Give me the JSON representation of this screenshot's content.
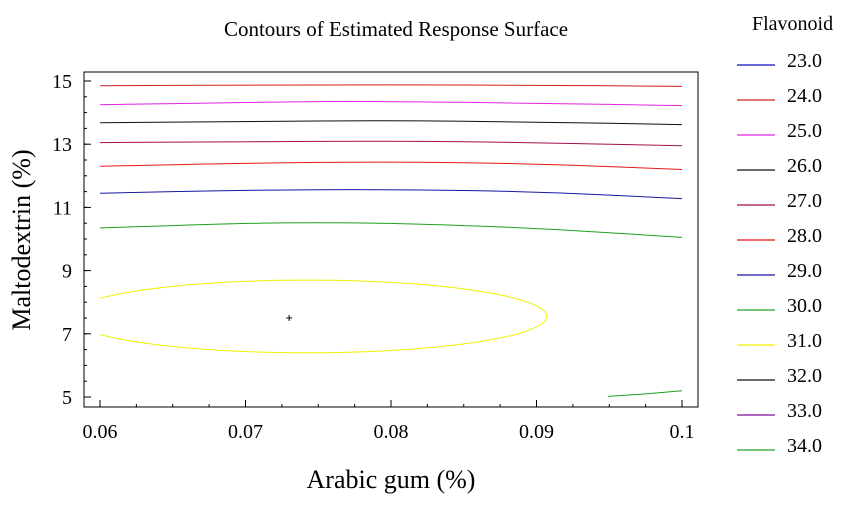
{
  "chart_data": {
    "type": "contour",
    "title": "Contours of Estimated Response Surface",
    "xlabel": "Arabic gum (%)",
    "ylabel": "Maltodextrin (%)",
    "xlim": [
      0.06,
      0.1
    ],
    "ylim": [
      5,
      15
    ],
    "xticks": [
      "0.06",
      "0.07",
      "0.08",
      "0.09",
      "0.1"
    ],
    "yticks": [
      "5",
      "7",
      "9",
      "11",
      "13",
      "15"
    ],
    "grid": false,
    "legend": {
      "title": "Flavonoid",
      "placement": "right",
      "entries": [
        {
          "label": "23.0",
          "color": "#1010c0"
        },
        {
          "label": "24.0",
          "color": "#d02020"
        },
        {
          "label": "25.0",
          "color": "#e020e0"
        },
        {
          "label": "26.0",
          "color": "#101010"
        },
        {
          "label": "27.0",
          "color": "#a01050"
        },
        {
          "label": "28.0",
          "color": "#e81818"
        },
        {
          "label": "29.0",
          "color": "#1818a0"
        },
        {
          "label": "30.0",
          "color": "#20a020"
        },
        {
          "label": "31.0",
          "color": "#f0f000"
        },
        {
          "label": "32.0",
          "color": "#101010"
        },
        {
          "label": "33.0",
          "color": "#8010a0"
        },
        {
          "label": "34.0",
          "color": "#20a020"
        }
      ]
    },
    "contours": [
      {
        "level": "24.0",
        "color": "#d02020",
        "points": [
          [
            0.06,
            14.85
          ],
          [
            0.07,
            14.87
          ],
          [
            0.08,
            14.88
          ],
          [
            0.09,
            14.87
          ],
          [
            0.1,
            14.83
          ]
        ]
      },
      {
        "level": "25.0",
        "color": "#e020e0",
        "points": [
          [
            0.06,
            14.25
          ],
          [
            0.07,
            14.32
          ],
          [
            0.075,
            14.35
          ],
          [
            0.08,
            14.35
          ],
          [
            0.09,
            14.3
          ],
          [
            0.1,
            14.22
          ]
        ]
      },
      {
        "level": "26.0",
        "color": "#101010",
        "points": [
          [
            0.06,
            13.68
          ],
          [
            0.07,
            13.72
          ],
          [
            0.08,
            13.75
          ],
          [
            0.09,
            13.7
          ],
          [
            0.1,
            13.62
          ]
        ]
      },
      {
        "level": "27.0",
        "color": "#a01050",
        "points": [
          [
            0.06,
            13.05
          ],
          [
            0.07,
            13.08
          ],
          [
            0.08,
            13.1
          ],
          [
            0.09,
            13.05
          ],
          [
            0.1,
            12.95
          ]
        ]
      },
      {
        "level": "28.0",
        "color": "#e81818",
        "points": [
          [
            0.06,
            12.3
          ],
          [
            0.07,
            12.4
          ],
          [
            0.08,
            12.45
          ],
          [
            0.09,
            12.38
          ],
          [
            0.1,
            12.2
          ]
        ]
      },
      {
        "level": "29.0",
        "color": "#1818a0",
        "points": [
          [
            0.06,
            11.45
          ],
          [
            0.07,
            11.55
          ],
          [
            0.08,
            11.57
          ],
          [
            0.09,
            11.5
          ],
          [
            0.1,
            11.28
          ]
        ]
      },
      {
        "level": "30.0",
        "color": "#20a020",
        "points": [
          [
            0.06,
            10.35
          ],
          [
            0.07,
            10.5
          ],
          [
            0.075,
            10.52
          ],
          [
            0.08,
            10.5
          ],
          [
            0.09,
            10.35
          ],
          [
            0.1,
            10.05
          ]
        ]
      },
      {
        "level": "30.0",
        "color": "#20a020",
        "points": [
          [
            0.0949,
            5.02
          ],
          [
            0.097,
            5.08
          ],
          [
            0.1,
            5.2
          ]
        ]
      },
      {
        "level": "31.0",
        "color": "#f0f000",
        "ellipse": {
          "cx": 0.07425,
          "cy": 7.55,
          "rx": 0.01645,
          "ry": 1.15
        }
      }
    ],
    "optimum": {
      "x": 0.073,
      "y": 7.5
    }
  }
}
